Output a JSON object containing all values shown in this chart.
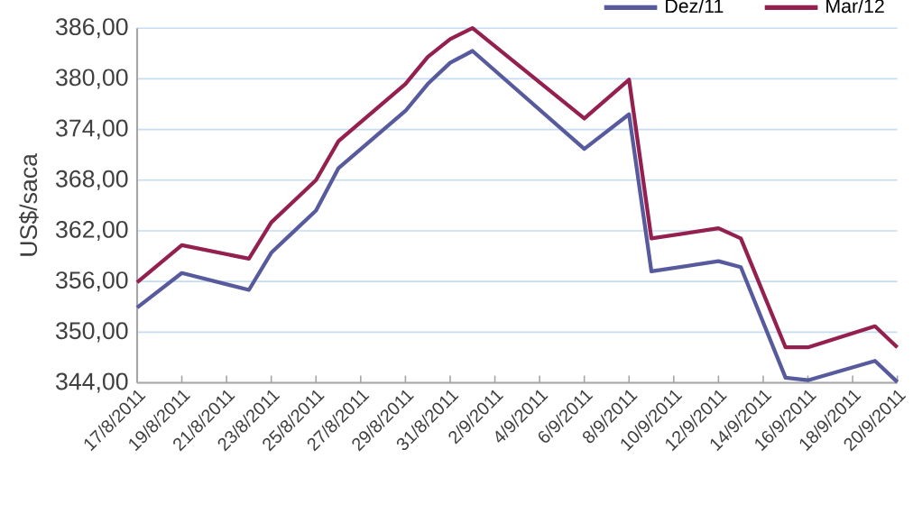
{
  "chart_data": {
    "type": "line",
    "ylabel": "US$/saca",
    "x": [
      "2011-08-17",
      "2011-08-19",
      "2011-08-22",
      "2011-08-23",
      "2011-08-24",
      "2011-08-25",
      "2011-08-26",
      "2011-08-29",
      "2011-08-30",
      "2011-08-31",
      "2011-09-01",
      "2011-09-06",
      "2011-09-08",
      "2011-09-09",
      "2011-09-12",
      "2011-09-13",
      "2011-09-15",
      "2011-09-16",
      "2011-09-19",
      "2011-09-20"
    ],
    "series": [
      {
        "name": "Dez/11",
        "color": "#575b9e",
        "values": [
          352.9,
          357.0,
          355.0,
          359.4,
          361.9,
          364.4,
          369.4,
          376.2,
          379.4,
          381.9,
          383.3,
          371.7,
          375.8,
          357.2,
          358.4,
          357.7,
          344.6,
          344.3,
          346.6,
          344.1
        ]
      },
      {
        "name": "Mar/12",
        "color": "#94204f",
        "values": [
          355.9,
          360.3,
          358.7,
          363.0,
          365.5,
          368.0,
          372.6,
          379.4,
          382.6,
          384.7,
          386.0,
          375.3,
          379.9,
          361.1,
          362.3,
          361.1,
          348.2,
          348.2,
          350.7,
          348.2
        ]
      }
    ],
    "xlim": [
      "2011-08-17",
      "2011-09-20"
    ],
    "xticks": [
      {
        "value": "2011-08-17",
        "label": "17/8/2011"
      },
      {
        "value": "2011-08-19",
        "label": "19/8/2011"
      },
      {
        "value": "2011-08-21",
        "label": "21/8/2011"
      },
      {
        "value": "2011-08-23",
        "label": "23/8/2011"
      },
      {
        "value": "2011-08-25",
        "label": "25/8/2011"
      },
      {
        "value": "2011-08-27",
        "label": "27/8/2011"
      },
      {
        "value": "2011-08-29",
        "label": "29/8/2011"
      },
      {
        "value": "2011-08-31",
        "label": "31/8/2011"
      },
      {
        "value": "2011-09-02",
        "label": "2/9/2011"
      },
      {
        "value": "2011-09-04",
        "label": "4/9/2011"
      },
      {
        "value": "2011-09-06",
        "label": "6/9/2011"
      },
      {
        "value": "2011-09-08",
        "label": "8/9/2011"
      },
      {
        "value": "2011-09-10",
        "label": "10/9/2011"
      },
      {
        "value": "2011-09-12",
        "label": "12/9/2011"
      },
      {
        "value": "2011-09-14",
        "label": "14/9/2011"
      },
      {
        "value": "2011-09-16",
        "label": "16/9/2011"
      },
      {
        "value": "2011-09-18",
        "label": "18/9/2011"
      },
      {
        "value": "2011-09-20",
        "label": "20/9/2011"
      }
    ],
    "ylim": [
      344,
      386
    ],
    "yticks": [
      {
        "value": 344,
        "label": "344,00"
      },
      {
        "value": 350,
        "label": "350,00"
      },
      {
        "value": 356,
        "label": "356,00"
      },
      {
        "value": 362,
        "label": "362,00"
      },
      {
        "value": 368,
        "label": "368,00"
      },
      {
        "value": 374,
        "label": "374,00"
      },
      {
        "value": 380,
        "label": "380,00"
      },
      {
        "value": 386,
        "label": "386,00"
      }
    ],
    "grid": "y",
    "legend": "top right",
    "marker": "none",
    "line_style": "solid"
  }
}
